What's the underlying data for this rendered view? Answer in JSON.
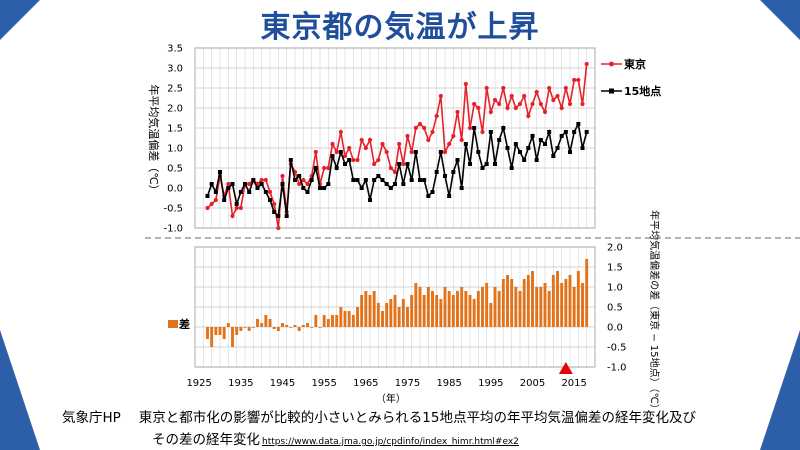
{
  "title": "東京都の気温が上昇",
  "caption": {
    "source": "気象庁HP",
    "line1": "東京と都市化の影響が比較的小さいとみられる15地点平均の年平均気温偏差の経年変化及び",
    "line2": "その差の経年変化",
    "url": "https://www.data.jma.go.jp/cpdinfo/index_himr.html#ex2"
  },
  "colors": {
    "title": "#1f4e9c",
    "tokyo": "#e8202a",
    "fifteen": "#000000",
    "diff": "#e3731b",
    "frame": "#2c5fa8",
    "marker": "#e8000b"
  },
  "chart_data": [
    {
      "type": "line",
      "ylabel": "年平均気温偏差（℃）",
      "ylim": [
        -1.0,
        3.5
      ],
      "yticks": [
        "-1.0",
        "-0.5",
        "0.0",
        "0.5",
        "1.0",
        "1.5",
        "2.0",
        "2.5",
        "3.0",
        "3.5"
      ],
      "grid": true,
      "legend_position": "right",
      "x": [
        1927,
        1928,
        1929,
        1930,
        1931,
        1932,
        1933,
        1934,
        1935,
        1936,
        1937,
        1938,
        1939,
        1940,
        1941,
        1942,
        1943,
        1944,
        1945,
        1946,
        1947,
        1948,
        1949,
        1950,
        1951,
        1952,
        1953,
        1954,
        1955,
        1956,
        1957,
        1958,
        1959,
        1960,
        1961,
        1962,
        1963,
        1964,
        1965,
        1966,
        1967,
        1968,
        1969,
        1970,
        1971,
        1972,
        1973,
        1974,
        1975,
        1976,
        1977,
        1978,
        1979,
        1980,
        1981,
        1982,
        1983,
        1984,
        1985,
        1986,
        1987,
        1988,
        1989,
        1990,
        1991,
        1992,
        1993,
        1994,
        1995,
        1996,
        1997,
        1998,
        1999,
        2000,
        2001,
        2002,
        2003,
        2004,
        2005,
        2006,
        2007,
        2008,
        2009,
        2010,
        2011,
        2012,
        2013,
        2014,
        2015,
        2016,
        2017,
        2018
      ],
      "series": [
        {
          "name": "東京",
          "values": [
            -0.5,
            -0.4,
            -0.3,
            0.3,
            -0.2,
            0.1,
            -0.7,
            -0.5,
            -0.5,
            0.1,
            0.1,
            0.2,
            0.1,
            0.2,
            0.2,
            -0.1,
            -0.4,
            -1.0,
            0.3,
            -0.6,
            0.6,
            0.4,
            0.1,
            0.2,
            0.1,
            0.3,
            0.9,
            0.1,
            0.5,
            0.5,
            1.1,
            0.9,
            1.4,
            0.8,
            1.0,
            0.7,
            0.7,
            1.2,
            1.0,
            1.2,
            0.6,
            0.7,
            1.1,
            0.9,
            0.5,
            0.4,
            1.1,
            0.6,
            1.3,
            0.9,
            1.5,
            1.6,
            1.5,
            1.2,
            1.4,
            1.8,
            2.3,
            0.9,
            1.1,
            1.3,
            1.9,
            1.2,
            2.6,
            1.5,
            2.1,
            2.0,
            1.4,
            2.5,
            1.9,
            2.2,
            2.1,
            2.5,
            2.0,
            2.3,
            2.0,
            2.1,
            2.3,
            1.8,
            2.1,
            2.4,
            2.1,
            1.9,
            2.5,
            2.2,
            2.3,
            2.0,
            2.5,
            2.1,
            2.7,
            2.7,
            2.1,
            3.1
          ]
        },
        {
          "name": "15地点",
          "values": [
            -0.2,
            0.1,
            -0.1,
            0.4,
            -0.3,
            0.0,
            0.1,
            -0.4,
            -0.1,
            0.1,
            -0.1,
            0.2,
            0.0,
            0.1,
            -0.1,
            -0.3,
            -0.6,
            -0.7,
            0.1,
            -0.7,
            0.7,
            0.2,
            0.3,
            0.0,
            -0.1,
            0.2,
            0.5,
            0.0,
            0.0,
            0.1,
            0.8,
            0.5,
            0.9,
            0.6,
            0.7,
            0.2,
            0.2,
            0.0,
            0.2,
            -0.3,
            0.2,
            0.3,
            0.2,
            0.1,
            0.0,
            0.1,
            0.6,
            0.1,
            0.6,
            0.2,
            0.9,
            0.2,
            0.2,
            -0.2,
            -0.1,
            0.4,
            0.9,
            0.3,
            -0.2,
            0.4,
            0.7,
            0.0,
            1.1,
            0.6,
            1.5,
            0.9,
            0.5,
            0.6,
            1.4,
            0.6,
            1.2,
            1.5,
            1.0,
            0.5,
            1.1,
            0.9,
            0.7,
            1.0,
            1.3,
            0.7,
            1.2,
            1.1,
            1.4,
            0.8,
            1.0,
            1.3,
            1.4,
            0.9,
            1.4,
            1.6,
            1.0,
            1.4
          ]
        }
      ]
    },
    {
      "type": "bar",
      "ylabel": "年平均気温偏差の差（東京 − 15地点）（℃）",
      "ylim": [
        -1.0,
        2.0
      ],
      "yticks": [
        "-1.0",
        "-0.5",
        "0.0",
        "0.5",
        "1.0",
        "1.5",
        "2.0"
      ],
      "grid": true,
      "xlabel": "（年）",
      "xticks": [
        "1925",
        "1935",
        "1945",
        "1955",
        "1965",
        "1975",
        "1985",
        "1995",
        "2005",
        "2015"
      ],
      "legend": "差",
      "legend_position": "left",
      "marker_year": 2013,
      "x": [
        1927,
        1928,
        1929,
        1930,
        1931,
        1932,
        1933,
        1934,
        1935,
        1936,
        1937,
        1938,
        1939,
        1940,
        1941,
        1942,
        1943,
        1944,
        1945,
        1946,
        1947,
        1948,
        1949,
        1950,
        1951,
        1952,
        1953,
        1954,
        1955,
        1956,
        1957,
        1958,
        1959,
        1960,
        1961,
        1962,
        1963,
        1964,
        1965,
        1966,
        1967,
        1968,
        1969,
        1970,
        1971,
        1972,
        1973,
        1974,
        1975,
        1976,
        1977,
        1978,
        1979,
        1980,
        1981,
        1982,
        1983,
        1984,
        1985,
        1986,
        1987,
        1988,
        1989,
        1990,
        1991,
        1992,
        1993,
        1994,
        1995,
        1996,
        1997,
        1998,
        1999,
        2000,
        2001,
        2002,
        2003,
        2004,
        2005,
        2006,
        2007,
        2008,
        2009,
        2010,
        2011,
        2012,
        2013,
        2014,
        2015,
        2016,
        2017,
        2018
      ],
      "values": [
        -0.3,
        -0.5,
        -0.2,
        -0.2,
        -0.3,
        0.1,
        -0.5,
        -0.2,
        -0.1,
        0.0,
        -0.1,
        0.0,
        0.2,
        0.1,
        0.3,
        0.2,
        -0.05,
        -0.1,
        0.1,
        0.05,
        0.0,
        0.05,
        -0.1,
        0.05,
        0.1,
        0.0,
        0.3,
        0.0,
        0.3,
        0.2,
        0.3,
        0.3,
        0.5,
        0.4,
        0.4,
        0.3,
        0.5,
        0.8,
        0.9,
        0.8,
        0.9,
        0.6,
        0.4,
        0.6,
        0.7,
        0.8,
        0.5,
        0.7,
        0.5,
        0.8,
        1.1,
        1.0,
        0.8,
        1.0,
        0.9,
        0.8,
        0.7,
        1.0,
        0.9,
        0.8,
        0.9,
        1.0,
        0.9,
        0.8,
        0.7,
        0.9,
        1.0,
        1.1,
        0.6,
        1.0,
        0.9,
        1.2,
        1.3,
        1.2,
        1.0,
        0.9,
        1.2,
        1.3,
        1.4,
        1.0,
        1.0,
        1.1,
        0.9,
        1.3,
        1.4,
        1.1,
        1.2,
        1.3,
        1.0,
        1.4,
        1.1,
        1.7
      ]
    }
  ]
}
